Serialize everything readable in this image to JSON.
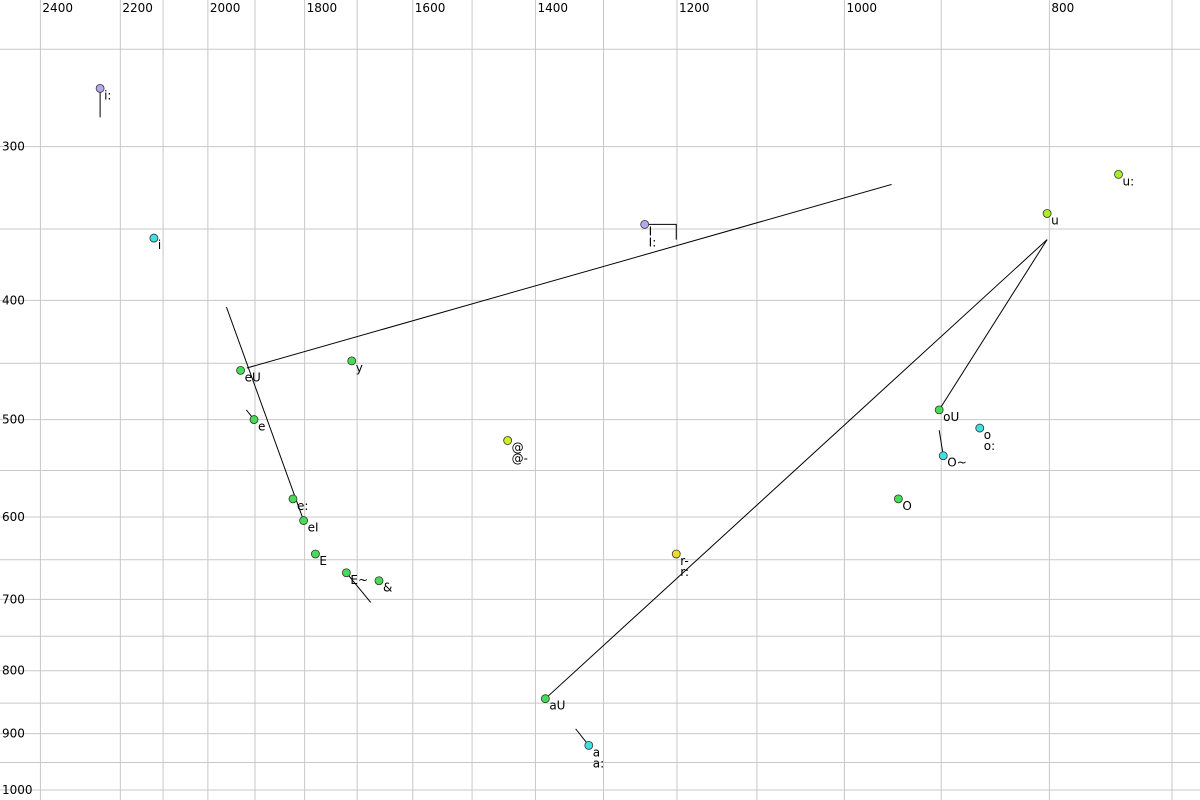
{
  "chart_data": {
    "type": "scatter",
    "xscale": "log",
    "yscale": "log",
    "xreversed": true,
    "grid": true,
    "xlim": [
      2508,
      679
    ],
    "ylim": [
      228,
      1019
    ],
    "xticks": [
      2400,
      2200,
      2000,
      1800,
      1600,
      1400,
      1200,
      1000,
      800
    ],
    "xminorticks": [
      2100,
      1900,
      1700,
      1500,
      1300,
      1100,
      900,
      700
    ],
    "yticks": [
      300,
      400,
      500,
      600,
      700,
      800,
      900,
      1000
    ],
    "yminorticks": [
      250,
      350,
      450,
      550,
      650,
      750,
      850,
      950
    ],
    "points": [
      {
        "label": "i:",
        "x": 2249,
        "y": 269,
        "color": "#b0a8f0"
      },
      {
        "label": "i",
        "x": 2121,
        "y": 356,
        "color": "#40e0e0"
      },
      {
        "label": "eU",
        "x": 1930,
        "y": 456,
        "color": "#44dd55"
      },
      {
        "label": "e",
        "x": 1902,
        "y": 500,
        "color": "#44dd55"
      },
      {
        "label": "e:",
        "x": 1823,
        "y": 580,
        "color": "#44dd55"
      },
      {
        "label": "eI",
        "x": 1802,
        "y": 604,
        "color": "#44dd55"
      },
      {
        "label": "E",
        "x": 1779,
        "y": 643,
        "color": "#44dd55"
      },
      {
        "label": "E~",
        "x": 1720,
        "y": 666,
        "color": "#44dd55"
      },
      {
        "label": "&",
        "x": 1660,
        "y": 676,
        "color": "#44dd55"
      },
      {
        "label": "y",
        "x": 1710,
        "y": 448,
        "color": "#44dd55"
      },
      {
        "label": "@",
        "x": 1443,
        "y": 520,
        "color": "#ccee22"
      },
      {
        "label": "@-",
        "x": 1443,
        "y": 520,
        "color": "#ccee22"
      },
      {
        "label": "aU",
        "x": 1385,
        "y": 843,
        "color": "#44dd55"
      },
      {
        "label": "a",
        "x": 1321,
        "y": 920,
        "color": "#40e0e0"
      },
      {
        "label": "a:",
        "x": 1321,
        "y": 920,
        "color": "#40e0e0"
      },
      {
        "label": "r-",
        "x": 1201,
        "y": 643,
        "color": "#eedd22"
      },
      {
        "label": "r:",
        "x": 1201,
        "y": 643,
        "color": "#eedd22"
      },
      {
        "label": "I",
        "x": 1243,
        "y": 347,
        "color": "#b0a8f0"
      },
      {
        "label": "I:",
        "x": 1243,
        "y": 347,
        "color": "#b0a8f0"
      },
      {
        "label": "oU",
        "x": 902,
        "y": 491,
        "color": "#44dd55"
      },
      {
        "label": "O~",
        "x": 898,
        "y": 535,
        "color": "#40e0e0"
      },
      {
        "label": "o",
        "x": 863,
        "y": 508,
        "color": "#40e0e0"
      },
      {
        "label": "o:",
        "x": 863,
        "y": 508,
        "color": "#40e0e0"
      },
      {
        "label": "O",
        "x": 943,
        "y": 580,
        "color": "#44dd55"
      },
      {
        "label": "u",
        "x": 802,
        "y": 340,
        "color": "#aaee22"
      },
      {
        "label": "u:",
        "x": 742,
        "y": 316,
        "color": "#aaee22"
      }
    ],
    "segments": [
      {
        "x": [
          1917,
          950
        ],
        "y": [
          454,
          322
        ]
      },
      {
        "x": [
          1960,
          1802
        ],
        "y": [
          405,
          604
        ]
      },
      {
        "x": [
          1385,
          802
        ],
        "y": [
          843,
          357
        ]
      },
      {
        "x": [
          902,
          802
        ],
        "y": [
          491,
          357
        ]
      },
      {
        "x": [
          2249,
          2249
        ],
        "y": [
          269,
          284
        ]
      },
      {
        "x": [
          1918,
          1902
        ],
        "y": [
          491,
          500
        ]
      },
      {
        "x": [
          1720,
          1675
        ],
        "y": [
          666,
          704
        ]
      },
      {
        "x": [
          1340,
          1321
        ],
        "y": [
          892,
          920
        ]
      },
      {
        "x": [
          1243,
          1201,
          1201
        ],
        "y": [
          347,
          347,
          357
        ]
      },
      {
        "x": [
          902,
          898
        ],
        "y": [
          510,
          535
        ]
      }
    ]
  }
}
